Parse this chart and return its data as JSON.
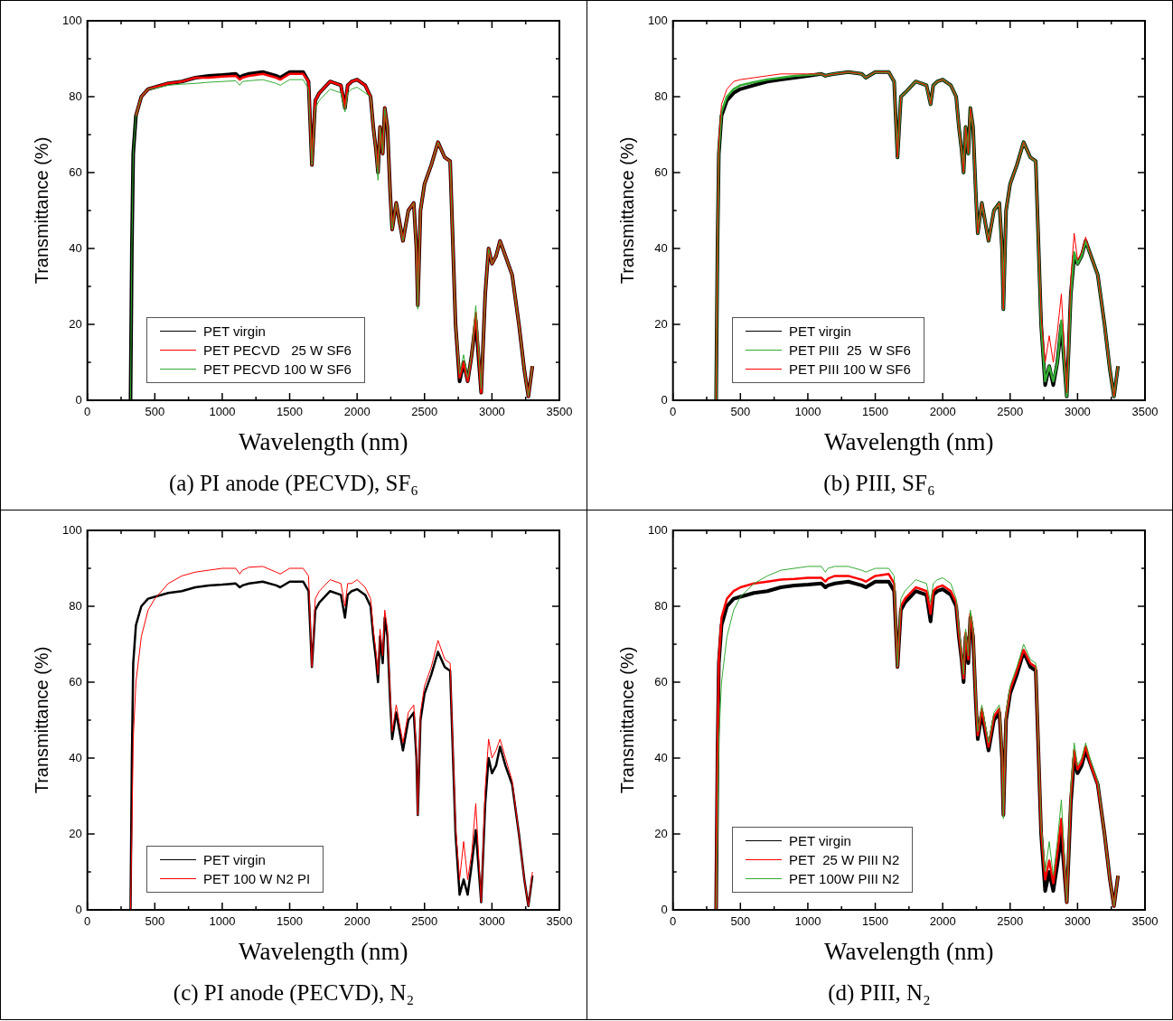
{
  "chart_data": [
    {
      "type": "line",
      "title": "(a) PI anode (PECVD), SF₆",
      "xlabel": "Wavelength (nm)",
      "ylabel": "Transmittance (%)",
      "legend": "bottom left",
      "xlim": [
        0,
        3500
      ],
      "xticks": [
        0,
        {
          "value": 250,
          "label": null
        },
        500,
        {
          "value": 750,
          "label": null
        },
        1000,
        {
          "value": 1250,
          "label": null
        },
        1500,
        {
          "value": 1750,
          "label": null
        },
        2000,
        {
          "value": 2250,
          "label": null
        },
        2500,
        {
          "value": 2750,
          "label": null
        },
        3000,
        {
          "value": 3250,
          "label": null
        },
        3500
      ],
      "ylim": [
        0,
        100
      ],
      "yticks": [
        0,
        {
          "value": 10,
          "label": null
        },
        20,
        {
          "value": 30,
          "label": null
        },
        40,
        {
          "value": 50,
          "label": null
        },
        60,
        {
          "value": 70,
          "label": null
        },
        80,
        {
          "value": 90,
          "label": null
        },
        100
      ],
      "x": [
        320,
        330,
        340,
        360,
        400,
        450,
        500,
        600,
        700,
        800,
        900,
        1000,
        1100,
        1130,
        1150,
        1200,
        1300,
        1400,
        1430,
        1500,
        1600,
        1640,
        1665,
        1690,
        1720,
        1800,
        1880,
        1910,
        1930,
        1960,
        2000,
        2060,
        2100,
        2120,
        2140,
        2155,
        2170,
        2190,
        2205,
        2225,
        2245,
        2260,
        2290,
        2320,
        2340,
        2380,
        2420,
        2440,
        2450,
        2470,
        2500,
        2550,
        2600,
        2650,
        2690,
        2730,
        2760,
        2790,
        2820,
        2850,
        2880,
        2920,
        2950,
        2975,
        3000,
        3030,
        3060,
        3100,
        3150,
        3200,
        3240,
        3270,
        3300
      ],
      "series": [
        {
          "name": "PET virgin",
          "color": "#000000",
          "values": [
            0,
            40,
            65,
            75,
            80,
            82,
            82.5,
            83.5,
            84,
            85,
            85.5,
            85.7,
            86,
            85,
            85.5,
            86,
            86.5,
            85.5,
            85,
            86.5,
            86.5,
            84,
            62,
            79,
            81,
            84,
            83,
            77,
            83,
            84,
            84.5,
            83,
            80,
            72,
            66,
            60,
            72,
            65,
            77,
            72,
            55,
            45,
            52,
            46,
            42,
            50,
            52,
            40,
            25,
            50,
            57,
            62,
            68,
            64,
            63,
            20,
            5,
            10,
            5,
            12,
            21,
            2,
            28,
            40,
            36,
            38,
            42,
            38,
            33,
            20,
            8,
            1,
            9
          ]
        },
        {
          "name": "PET PECVD   25 W SF6",
          "color": "#ff0000",
          "values": [
            null,
            null,
            null,
            75,
            80,
            82,
            82.5,
            83.5,
            84,
            85,
            85,
            85.3,
            85.5,
            84.5,
            85,
            85.5,
            86,
            85,
            84.5,
            86,
            86,
            84,
            62,
            79,
            81,
            84,
            83,
            77,
            83,
            84,
            84.5,
            83,
            80,
            72,
            66,
            60,
            72,
            65,
            77,
            72,
            55,
            45,
            52,
            46,
            42,
            50,
            52,
            40,
            25,
            50,
            57,
            62,
            68,
            64,
            63,
            20,
            6,
            10,
            5,
            12,
            23,
            2,
            28,
            40,
            36,
            38,
            42,
            38,
            33,
            20,
            8,
            1,
            9
          ]
        },
        {
          "name": "PET PECVD 100 W SF6",
          "color": "#33aa33",
          "values": [
            0,
            40,
            65,
            75,
            80,
            82,
            82.2,
            83,
            83.3,
            83.5,
            83.8,
            84,
            84.2,
            83,
            84,
            84.2,
            84.5,
            83.5,
            83,
            84.5,
            84.5,
            82,
            62,
            77,
            79,
            82,
            81,
            76,
            81,
            82,
            82.5,
            81,
            80,
            72,
            66,
            58,
            72,
            65,
            77,
            72,
            55,
            45,
            52,
            46,
            42,
            50,
            52,
            40,
            24,
            50,
            57,
            62,
            68,
            64,
            63,
            20,
            7,
            12,
            6,
            12,
            25,
            3,
            28,
            40,
            36,
            38,
            42,
            38,
            33,
            20,
            8,
            1,
            9
          ]
        }
      ]
    },
    {
      "type": "line",
      "title": "(b) PIII, SF₆",
      "xlabel": "Wavelength (nm)",
      "ylabel": "Transmittance (%)",
      "legend": "bottom left",
      "xlim": [
        0,
        3500
      ],
      "xticks": [
        0,
        {
          "value": 250,
          "label": null
        },
        500,
        {
          "value": 750,
          "label": null
        },
        1000,
        {
          "value": 1250,
          "label": null
        },
        1500,
        {
          "value": 1750,
          "label": null
        },
        2000,
        {
          "value": 2250,
          "label": null
        },
        2500,
        {
          "value": 2750,
          "label": null
        },
        3000,
        {
          "value": 3250,
          "label": null
        },
        3500
      ],
      "ylim": [
        0,
        100
      ],
      "yticks": [
        0,
        {
          "value": 10,
          "label": null
        },
        20,
        {
          "value": 30,
          "label": null
        },
        40,
        {
          "value": 50,
          "label": null
        },
        60,
        {
          "value": 70,
          "label": null
        },
        80,
        {
          "value": 90,
          "label": null
        },
        100
      ],
      "x": [
        320,
        330,
        340,
        360,
        400,
        450,
        500,
        600,
        700,
        800,
        900,
        1000,
        1100,
        1130,
        1150,
        1200,
        1300,
        1400,
        1430,
        1500,
        1600,
        1640,
        1665,
        1690,
        1720,
        1800,
        1880,
        1910,
        1930,
        1960,
        2000,
        2060,
        2100,
        2120,
        2140,
        2155,
        2170,
        2190,
        2205,
        2225,
        2245,
        2260,
        2290,
        2320,
        2340,
        2380,
        2420,
        2440,
        2450,
        2470,
        2500,
        2550,
        2600,
        2650,
        2690,
        2730,
        2760,
        2790,
        2820,
        2850,
        2880,
        2920,
        2950,
        2975,
        3000,
        3030,
        3060,
        3100,
        3150,
        3200,
        3240,
        3270,
        3300
      ],
      "series": [
        {
          "name": "PET virgin",
          "color": "#000000",
          "values": [
            0,
            40,
            65,
            75,
            79,
            81,
            82,
            83,
            84,
            84.5,
            85,
            85.5,
            86,
            85.5,
            85.7,
            86,
            86.5,
            86,
            85,
            86.5,
            86.5,
            84,
            64,
            80,
            81,
            84,
            83,
            78,
            83,
            84,
            84.5,
            83,
            80,
            72,
            66,
            60,
            72,
            65,
            77,
            72,
            55,
            44,
            52,
            46,
            42,
            50,
            52,
            40,
            24,
            50,
            57,
            62,
            68,
            64,
            63,
            20,
            4,
            9,
            4,
            10,
            20,
            1,
            28,
            38,
            36,
            38,
            42,
            38,
            33,
            20,
            8,
            1,
            9
          ]
        },
        {
          "name": "PET PIII  25  W SF6",
          "color": "#33aa33",
          "values": [
            0,
            40,
            66,
            76,
            80,
            82,
            83,
            83.8,
            84.5,
            85,
            85.5,
            85.7,
            86,
            85.5,
            85.7,
            86,
            86.5,
            86,
            85,
            86.5,
            86.5,
            84,
            64,
            80,
            81,
            84,
            83,
            78,
            83,
            84,
            84.5,
            83,
            80,
            72,
            66,
            60,
            72,
            65,
            77,
            72,
            55,
            44,
            52,
            46,
            42,
            50,
            52,
            40,
            24,
            50,
            57,
            62,
            68,
            64,
            63,
            20,
            5,
            9,
            5,
            10,
            21,
            1,
            28,
            39,
            36,
            38,
            42,
            38,
            33,
            20,
            8,
            1,
            9
          ]
        },
        {
          "name": "PET PIII 100 W SF6",
          "color": "#ff0000",
          "values": [
            0,
            42,
            68,
            78,
            82,
            84,
            84.5,
            85,
            85.5,
            86,
            86,
            86,
            86,
            85.5,
            85.7,
            86,
            86.5,
            86,
            85,
            86.5,
            86.5,
            84,
            64,
            80,
            81,
            84,
            83,
            78,
            83,
            84,
            84.5,
            83,
            80,
            72,
            66,
            60,
            72,
            65,
            77,
            72,
            55,
            44,
            52,
            46,
            42,
            50,
            52,
            40,
            24,
            50,
            57,
            62,
            68,
            64,
            63,
            22,
            10,
            17,
            10,
            18,
            28,
            2,
            32,
            44,
            37,
            39,
            43,
            38,
            33,
            20,
            8,
            1,
            9
          ]
        }
      ]
    },
    {
      "type": "line",
      "title": "(c) PI anode (PECVD), N₂",
      "xlabel": "Wavelength (nm)",
      "ylabel": "Transmittance (%)",
      "legend": "bottom left",
      "xlim": [
        0,
        3500
      ],
      "xticks": [
        0,
        {
          "value": 250,
          "label": null
        },
        500,
        {
          "value": 750,
          "label": null
        },
        1000,
        {
          "value": 1250,
          "label": null
        },
        1500,
        {
          "value": 1750,
          "label": null
        },
        2000,
        {
          "value": 2250,
          "label": null
        },
        2500,
        {
          "value": 2750,
          "label": null
        },
        3000,
        {
          "value": 3250,
          "label": null
        },
        3500
      ],
      "ylim": [
        0,
        100
      ],
      "yticks": [
        0,
        {
          "value": 10,
          "label": null
        },
        20,
        {
          "value": 30,
          "label": null
        },
        40,
        {
          "value": 50,
          "label": null
        },
        60,
        {
          "value": 70,
          "label": null
        },
        80,
        {
          "value": 90,
          "label": null
        },
        100
      ],
      "x": [
        320,
        330,
        340,
        360,
        400,
        450,
        500,
        600,
        700,
        800,
        900,
        1000,
        1100,
        1130,
        1150,
        1200,
        1300,
        1400,
        1430,
        1500,
        1600,
        1640,
        1665,
        1690,
        1720,
        1800,
        1880,
        1910,
        1930,
        1960,
        2000,
        2060,
        2100,
        2120,
        2140,
        2155,
        2170,
        2190,
        2205,
        2225,
        2245,
        2260,
        2290,
        2320,
        2340,
        2380,
        2420,
        2440,
        2450,
        2470,
        2500,
        2550,
        2600,
        2650,
        2690,
        2730,
        2760,
        2790,
        2820,
        2850,
        2880,
        2920,
        2950,
        2975,
        3000,
        3030,
        3060,
        3100,
        3150,
        3200,
        3240,
        3270,
        3300
      ],
      "series": [
        {
          "name": "PET virgin",
          "color": "#000000",
          "values": [
            0,
            40,
            65,
            75,
            80,
            82,
            82.5,
            83.5,
            84,
            85,
            85.5,
            85.7,
            86,
            85,
            85.5,
            86,
            86.5,
            85.5,
            85,
            86.5,
            86.5,
            84,
            64,
            79,
            81,
            84,
            83,
            77,
            83,
            84,
            84.5,
            83,
            80,
            72,
            66,
            60,
            72,
            65,
            77,
            72,
            55,
            45,
            52,
            46,
            42,
            50,
            52,
            40,
            25,
            50,
            57,
            62,
            68,
            64,
            63,
            20,
            4,
            8,
            4,
            12,
            21,
            2,
            28,
            40,
            36,
            38,
            43,
            38,
            33,
            20,
            8,
            1,
            9
          ]
        },
        {
          "name": "PET 100 W N2 PI",
          "color": "#ff0000",
          "values": [
            0,
            20,
            45,
            60,
            72,
            79,
            82,
            86,
            88,
            89,
            89.5,
            90,
            90,
            88.5,
            89.5,
            90.3,
            90.5,
            89,
            88.5,
            90,
            90,
            88,
            64,
            82,
            84,
            87,
            86,
            80,
            86,
            86,
            87,
            85,
            82,
            74,
            68,
            62,
            74,
            67,
            79,
            74,
            57,
            47,
            54,
            48,
            44,
            52,
            54,
            42,
            25,
            52,
            59,
            64,
            71,
            66,
            65,
            22,
            8,
            18,
            8,
            15,
            28,
            2,
            32,
            45,
            40,
            42,
            45,
            40,
            34,
            20,
            8,
            1,
            10
          ]
        }
      ]
    },
    {
      "type": "line",
      "title": "(d) PIII, N₂",
      "xlabel": "Wavelength (nm)",
      "ylabel": "Transmittance (%)",
      "legend": "bottom left",
      "xlim": [
        0,
        3500
      ],
      "xticks": [
        0,
        {
          "value": 250,
          "label": null
        },
        500,
        {
          "value": 750,
          "label": null
        },
        1000,
        {
          "value": 1250,
          "label": null
        },
        1500,
        {
          "value": 1750,
          "label": null
        },
        2000,
        {
          "value": 2250,
          "label": null
        },
        2500,
        {
          "value": 2750,
          "label": null
        },
        3000,
        {
          "value": 3250,
          "label": null
        },
        3500
      ],
      "ylim": [
        0,
        100
      ],
      "yticks": [
        0,
        {
          "value": 10,
          "label": null
        },
        20,
        {
          "value": 30,
          "label": null
        },
        40,
        {
          "value": 50,
          "label": null
        },
        60,
        {
          "value": 70,
          "label": null
        },
        80,
        {
          "value": 90,
          "label": null
        },
        100
      ],
      "x": [
        320,
        330,
        340,
        360,
        400,
        450,
        500,
        600,
        700,
        800,
        900,
        1000,
        1100,
        1130,
        1150,
        1200,
        1300,
        1400,
        1430,
        1500,
        1600,
        1640,
        1665,
        1690,
        1720,
        1800,
        1880,
        1910,
        1930,
        1960,
        2000,
        2060,
        2100,
        2120,
        2140,
        2155,
        2170,
        2190,
        2205,
        2225,
        2245,
        2260,
        2290,
        2320,
        2340,
        2380,
        2420,
        2440,
        2450,
        2470,
        2500,
        2550,
        2600,
        2650,
        2690,
        2730,
        2760,
        2790,
        2820,
        2850,
        2880,
        2920,
        2950,
        2975,
        3000,
        3030,
        3060,
        3100,
        3150,
        3200,
        3240,
        3270,
        3300
      ],
      "series": [
        {
          "name": "PET virgin",
          "color": "#000000",
          "values": [
            0,
            40,
            65,
            75,
            80,
            82,
            82.5,
            83.5,
            84,
            85,
            85.5,
            85.7,
            86,
            85,
            85.5,
            86,
            86.5,
            85.5,
            85,
            86.5,
            86.5,
            84,
            64,
            79,
            81,
            84,
            83,
            76,
            83,
            84,
            84.5,
            83,
            80,
            72,
            66,
            60,
            72,
            65,
            77,
            72,
            55,
            45,
            52,
            46,
            42,
            50,
            52,
            40,
            25,
            50,
            57,
            62,
            68,
            64,
            63,
            20,
            5,
            10,
            5,
            12,
            20,
            2,
            28,
            40,
            36,
            38,
            42,
            38,
            33,
            20,
            8,
            1,
            9
          ]
        },
        {
          "name": "PET  25 W PIII N2",
          "color": "#ff0000",
          "values": [
            0,
            40,
            66,
            77,
            82,
            84,
            85,
            86,
            86.5,
            87,
            87.2,
            87.5,
            87.5,
            86.5,
            87.3,
            88,
            88,
            87,
            86.5,
            88,
            88.5,
            86,
            64,
            80,
            82,
            85,
            84,
            78,
            84,
            85,
            85.5,
            84,
            81,
            73,
            67,
            61,
            73,
            66,
            78,
            73,
            56,
            46,
            53,
            47,
            43,
            51,
            53,
            41,
            25,
            51,
            58,
            63,
            68.5,
            65,
            64,
            21,
            8,
            13,
            7,
            15,
            24,
            2,
            30,
            42,
            37,
            39,
            43,
            38,
            33,
            20,
            8,
            1,
            9
          ]
        },
        {
          "name": "PET 100W PIII N2",
          "color": "#33aa33",
          "values": [
            0,
            20,
            45,
            60,
            72,
            79,
            82.5,
            86,
            88,
            89.5,
            90,
            90.5,
            90.5,
            89,
            90,
            90.5,
            90.5,
            89.5,
            89,
            90,
            90,
            88,
            64,
            82,
            84,
            87,
            86,
            81,
            86,
            87,
            87.5,
            86,
            82,
            74,
            68,
            62,
            74,
            67,
            79,
            74,
            57,
            47,
            54,
            48,
            44,
            52,
            54,
            42,
            24,
            52,
            59,
            64,
            70,
            66,
            65,
            22,
            10,
            18,
            9,
            18,
            29,
            2,
            32,
            44,
            38,
            40,
            44,
            39,
            34,
            20,
            8,
            1,
            9
          ]
        }
      ]
    }
  ]
}
